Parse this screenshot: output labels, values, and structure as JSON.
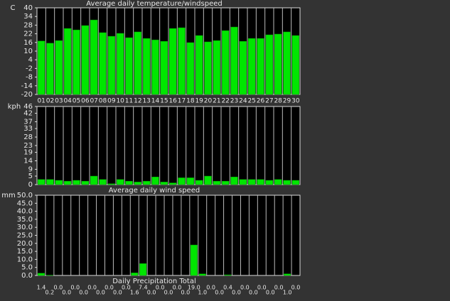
{
  "chart_data": [
    {
      "type": "bar",
      "title": "Average daily temperature/windspeed",
      "y_label": "C",
      "categories": [
        "01",
        "02",
        "03",
        "04",
        "05",
        "06",
        "07",
        "08",
        "09",
        "10",
        "11",
        "12",
        "13",
        "14",
        "15",
        "16",
        "17",
        "18",
        "19",
        "20",
        "21",
        "22",
        "23",
        "24",
        "25",
        "26",
        "27",
        "28",
        "29",
        "30"
      ],
      "values": [
        17,
        15.5,
        17.3,
        25.7,
        24.7,
        27.7,
        31.6,
        22.8,
        20.3,
        22.3,
        19.3,
        23.3,
        18.8,
        17.8,
        16.8,
        25.7,
        26.2,
        15.9,
        20.8,
        16.4,
        17.3,
        24.2,
        26.7,
        16.8,
        18.8,
        18.8,
        21.3,
        21.8,
        23.3,
        20.8
      ],
      "color": "#00e600",
      "ylim": [
        -20,
        40
      ],
      "yticks": [
        40,
        34,
        28,
        22,
        16,
        10,
        4,
        -2,
        -8,
        -14,
        -20
      ],
      "grid": true
    },
    {
      "type": "bar",
      "title": "Average daily wind speed",
      "y_label": "kph",
      "values": [
        3,
        3,
        2.5,
        2,
        2.5,
        2,
        5,
        3,
        0.5,
        3,
        2,
        1.5,
        2,
        4.5,
        1.5,
        1,
        4,
        4,
        2.5,
        5,
        2,
        2,
        4.5,
        3,
        3,
        3,
        2.5,
        3,
        2.5,
        2.5
      ],
      "color": "#00e600",
      "ylim": [
        0,
        46
      ],
      "yticks": [
        46,
        42,
        37,
        33,
        28,
        23,
        19,
        14,
        9,
        5,
        0
      ],
      "grid": true
    },
    {
      "type": "bar",
      "title": "Daily Precipitation Total",
      "y_label": "mm",
      "values": [
        1.4,
        0.2,
        0,
        0,
        0,
        0,
        0,
        0,
        0,
        0,
        0,
        1.6,
        7.4,
        0,
        0,
        0,
        0,
        0,
        19,
        1,
        0,
        0,
        0.4,
        0,
        0,
        0,
        0,
        0,
        0,
        1,
        0
      ],
      "value_labels": [
        "1.4",
        "0.2",
        "0.0",
        "0.0",
        "0.0",
        "0.0",
        "0.0",
        "0.0",
        "0.0",
        "0.0",
        "0.0",
        "1.6",
        "7.4",
        "0.0",
        "0.0",
        "0.0",
        "0.0",
        "0.0",
        "19.0",
        "1.0",
        "0.0",
        "0.0",
        "0.4",
        "0.0",
        "0.0",
        "0.0",
        "0.0",
        "0.0",
        "0.0",
        "1.0",
        "0.0"
      ],
      "color": "#00e600",
      "ylim": [
        0,
        50
      ],
      "yticks": [
        {
          "value": 50,
          "label": "50.0"
        },
        {
          "value": 45,
          "label": "45.0"
        },
        {
          "value": 40,
          "label": "40.0"
        },
        {
          "value": 35,
          "label": "35.0"
        },
        {
          "value": 30,
          "label": "30.0"
        },
        {
          "value": 25,
          "label": "25.0"
        },
        {
          "value": 20,
          "label": "20.0"
        },
        {
          "value": 15,
          "label": "15.0"
        },
        {
          "value": 10,
          "label": "10.0"
        },
        {
          "value": 5,
          "label": "5.0"
        },
        {
          "value": 0,
          "label": "0.0"
        }
      ],
      "grid": true
    }
  ]
}
